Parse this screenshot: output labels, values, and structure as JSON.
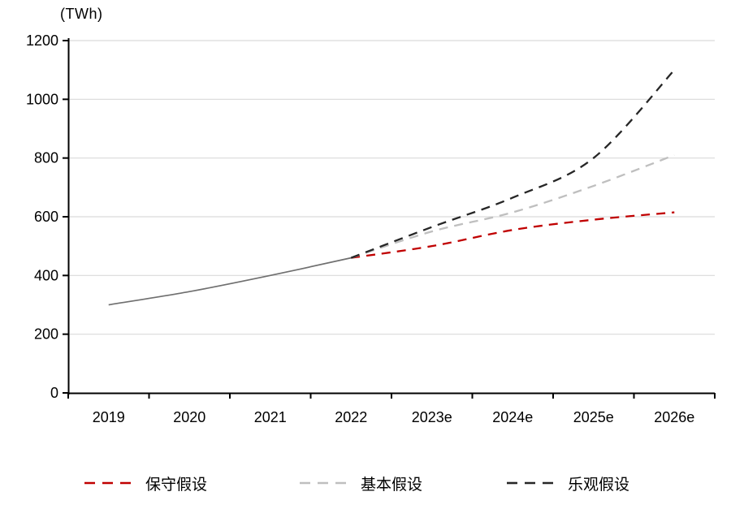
{
  "chart_data": {
    "type": "line",
    "unit_label": "(TWh)",
    "x_categories": [
      "2019",
      "2020",
      "2021",
      "2022",
      "2023e",
      "2024e",
      "2025e",
      "2026e"
    ],
    "yticks": [
      0,
      200,
      400,
      600,
      800,
      1000,
      1200
    ],
    "ylim": [
      0,
      1200
    ],
    "grid": "horizontal-light",
    "legend_position": "bottom",
    "series": [
      {
        "id": "historical-actual",
        "label": "",
        "style": "solid",
        "color": "#6f6f6f",
        "show_in_legend": false,
        "x": [
          "2019",
          "2020",
          "2021",
          "2022"
        ],
        "values": [
          300,
          345,
          400,
          460
        ]
      },
      {
        "id": "conservative",
        "label": "保守假设",
        "style": "dashed",
        "color": "#c00000",
        "show_in_legend": true,
        "x": [
          "2022",
          "2023e",
          "2024e",
          "2025e",
          "2026e"
        ],
        "values": [
          460,
          500,
          555,
          590,
          615
        ]
      },
      {
        "id": "base",
        "label": "基本假设",
        "style": "dashed",
        "color": "#bfbfbf",
        "show_in_legend": true,
        "x": [
          "2022",
          "2023e",
          "2024e",
          "2025e",
          "2026e"
        ],
        "values": [
          460,
          550,
          615,
          705,
          810
        ]
      },
      {
        "id": "optimistic",
        "label": "乐观假设",
        "style": "dashed",
        "color": "#262626",
        "show_in_legend": true,
        "x": [
          "2022",
          "2023e",
          "2024e",
          "2025e",
          "2026e"
        ],
        "values": [
          460,
          565,
          665,
          800,
          1100
        ]
      }
    ],
    "legend": [
      {
        "label": "保守假设",
        "color": "#c00000"
      },
      {
        "label": "基本假设",
        "color": "#bfbfbf"
      },
      {
        "label": "乐观假设",
        "color": "#262626"
      }
    ],
    "colors": {
      "axis": "#000000",
      "grid": "#d9d9d9",
      "background": "#ffffff"
    }
  }
}
